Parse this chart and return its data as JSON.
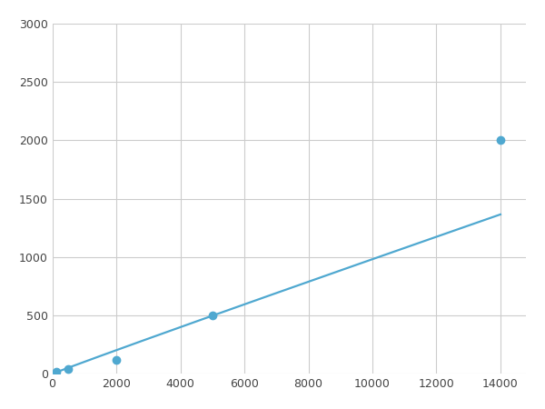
{
  "x": [
    125,
    500,
    2000,
    5000,
    14000
  ],
  "y": [
    20,
    40,
    120,
    500,
    2000
  ],
  "line_color": "#4fa8d0",
  "marker_color": "#4fa8d0",
  "marker_size": 6,
  "line_width": 1.6,
  "xlim": [
    0,
    14800
  ],
  "ylim": [
    0,
    3000
  ],
  "xticks": [
    0,
    2000,
    4000,
    6000,
    8000,
    10000,
    12000,
    14000
  ],
  "yticks": [
    0,
    500,
    1000,
    1500,
    2000,
    2500,
    3000
  ],
  "xtick_labels": [
    "0",
    "2000",
    "4000",
    "6000",
    "8000",
    "10000",
    "12000",
    "14000"
  ],
  "ytick_labels": [
    "0",
    "500",
    "1000",
    "1500",
    "2000",
    "2500",
    "3000"
  ],
  "grid_color": "#cccccc",
  "grid_linewidth": 0.8,
  "background_color": "#ffffff",
  "figsize": [
    6.0,
    4.5
  ],
  "dpi": 100
}
